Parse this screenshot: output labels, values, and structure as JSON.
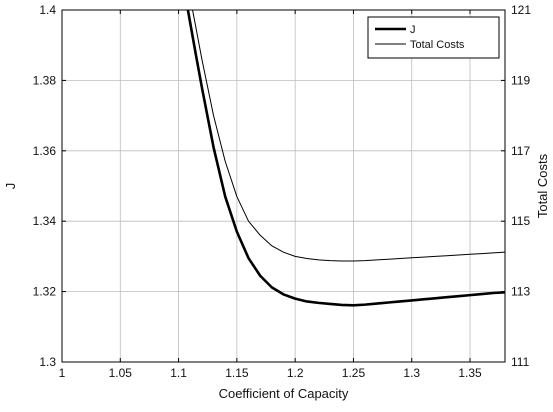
{
  "chart_data": {
    "type": "line",
    "xlabel": "Coefficient of Capacity",
    "ylabel_left": "J",
    "ylabel_right": "Total Costs",
    "xlim": [
      1.0,
      1.38
    ],
    "ylim_left": [
      1.3,
      1.4
    ],
    "ylim_right": [
      111,
      121
    ],
    "grid": true,
    "legend_position": "top-right",
    "x_ticks": [
      "1",
      "1.05",
      "1.1",
      "1.15",
      "1.2",
      "1.25",
      "1.3",
      "1.35"
    ],
    "left_ticks": [
      "1.3",
      "1.32",
      "1.34",
      "1.36",
      "1.38",
      "1.4"
    ],
    "right_ticks": [
      "111",
      "113",
      "115",
      "117",
      "119",
      "121"
    ],
    "series": [
      {
        "name": "J",
        "axis": "left",
        "line": "thick",
        "x": [
          1.108,
          1.115,
          1.12,
          1.13,
          1.14,
          1.15,
          1.16,
          1.17,
          1.18,
          1.19,
          1.2,
          1.21,
          1.22,
          1.23,
          1.24,
          1.25,
          1.26,
          1.27,
          1.28,
          1.29,
          1.3,
          1.31,
          1.32,
          1.33,
          1.34,
          1.35,
          1.36,
          1.37,
          1.38
        ],
        "values": [
          1.4,
          1.387,
          1.378,
          1.361,
          1.347,
          1.337,
          1.3295,
          1.3245,
          1.3212,
          1.3192,
          1.318,
          1.3172,
          1.3168,
          1.3165,
          1.3162,
          1.3161,
          1.3163,
          1.3166,
          1.3169,
          1.3172,
          1.3175,
          1.3178,
          1.3181,
          1.3184,
          1.3187,
          1.319,
          1.3193,
          1.3196,
          1.3198
        ]
      },
      {
        "name": "Total Costs",
        "axis": "right",
        "line": "thin",
        "x": [
          1.112,
          1.12,
          1.13,
          1.14,
          1.15,
          1.16,
          1.17,
          1.18,
          1.19,
          1.2,
          1.21,
          1.22,
          1.23,
          1.24,
          1.25,
          1.26,
          1.27,
          1.28,
          1.29,
          1.3,
          1.31,
          1.32,
          1.33,
          1.34,
          1.35,
          1.36,
          1.37,
          1.38
        ],
        "values": [
          121.0,
          119.6,
          118.0,
          116.7,
          115.7,
          115.0,
          114.6,
          114.3,
          114.12,
          114.0,
          113.94,
          113.9,
          113.88,
          113.87,
          113.87,
          113.88,
          113.9,
          113.92,
          113.94,
          113.96,
          113.98,
          114.0,
          114.02,
          114.04,
          114.06,
          114.08,
          114.1,
          114.12
        ]
      }
    ]
  }
}
